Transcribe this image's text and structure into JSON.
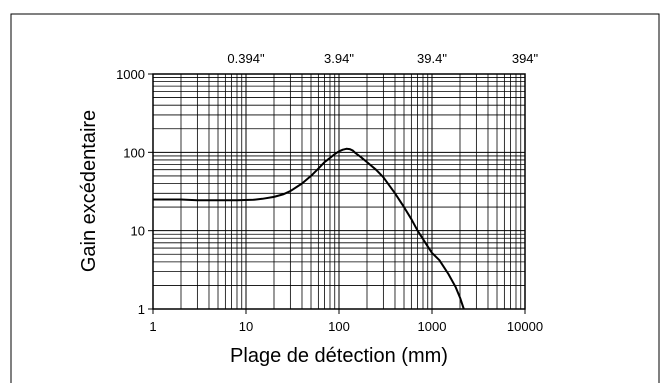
{
  "chart_data": {
    "type": "line",
    "xlabel": "Plage de détection (mm)",
    "ylabel": "Gain excédentaire",
    "x_scale": "log",
    "y_scale": "log",
    "xlim": [
      1,
      10000
    ],
    "ylim": [
      1,
      1000
    ],
    "x_ticks": [
      1,
      10,
      100,
      1000,
      10000
    ],
    "x_tick_labels": [
      "1",
      "10",
      "100",
      "1000",
      "10000"
    ],
    "y_ticks": [
      1,
      10,
      100,
      1000
    ],
    "y_tick_labels": [
      "1",
      "10",
      "100",
      "1000"
    ],
    "top_axis": {
      "ticks_mm": [
        10,
        100,
        1000,
        10000
      ],
      "labels": [
        "0.394\"",
        "3.94\"",
        "39.4\"",
        "394\""
      ]
    },
    "grid": true,
    "series": [
      {
        "x": [
          1,
          2,
          3,
          5,
          8,
          12,
          15,
          20,
          25,
          30,
          40,
          50,
          60,
          70,
          80,
          90,
          100,
          110,
          120,
          130,
          140,
          150,
          170,
          200,
          250,
          300,
          400,
          500,
          600,
          700,
          800,
          900,
          1000,
          1200,
          1500,
          1800,
          2000,
          2200
        ],
        "y": [
          25,
          25,
          24.5,
          24.5,
          24.5,
          24.8,
          25.5,
          27,
          29,
          32,
          40,
          50,
          62,
          75,
          85,
          95,
          103,
          108,
          111,
          110,
          106,
          98,
          88,
          75,
          60,
          48,
          30,
          20,
          14,
          10,
          7.8,
          6.3,
          5.2,
          4.2,
          2.8,
          1.9,
          1.4,
          1
        ]
      }
    ]
  }
}
